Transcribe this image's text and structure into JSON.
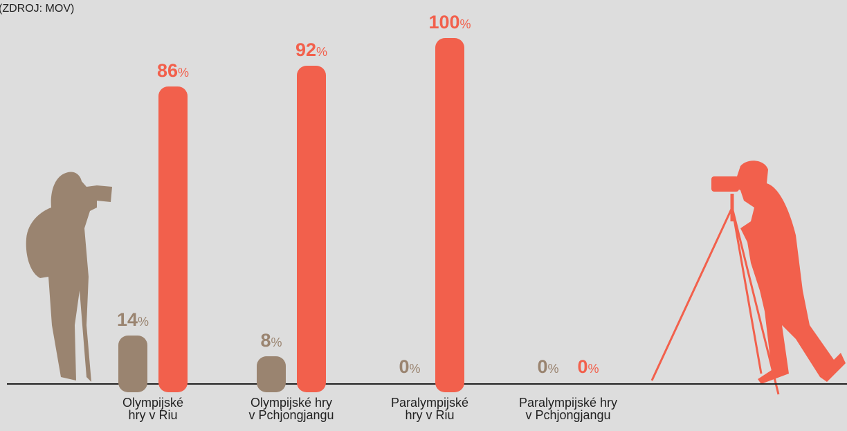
{
  "chart_data": {
    "type": "bar",
    "title": "(ZDROJ: MOV)",
    "categories": [
      "Olympijské\nhry v Riu",
      "Olympijské hry\nv Pchjongjangu",
      "Paralympijské\nhry v Riu",
      "Paralympijské hry\nv Pchjongjangu"
    ],
    "series": [
      {
        "color": "#9a8470",
        "values": [
          14,
          8,
          0,
          0
        ],
        "value_labels": [
          "14%",
          "8%",
          "0%",
          "0%"
        ]
      },
      {
        "color": "#f2604c",
        "values": [
          86,
          92,
          100,
          0
        ],
        "value_labels": [
          "86%",
          "92%",
          "100%",
          "0%"
        ]
      }
    ],
    "ylim": [
      0,
      100
    ]
  }
}
